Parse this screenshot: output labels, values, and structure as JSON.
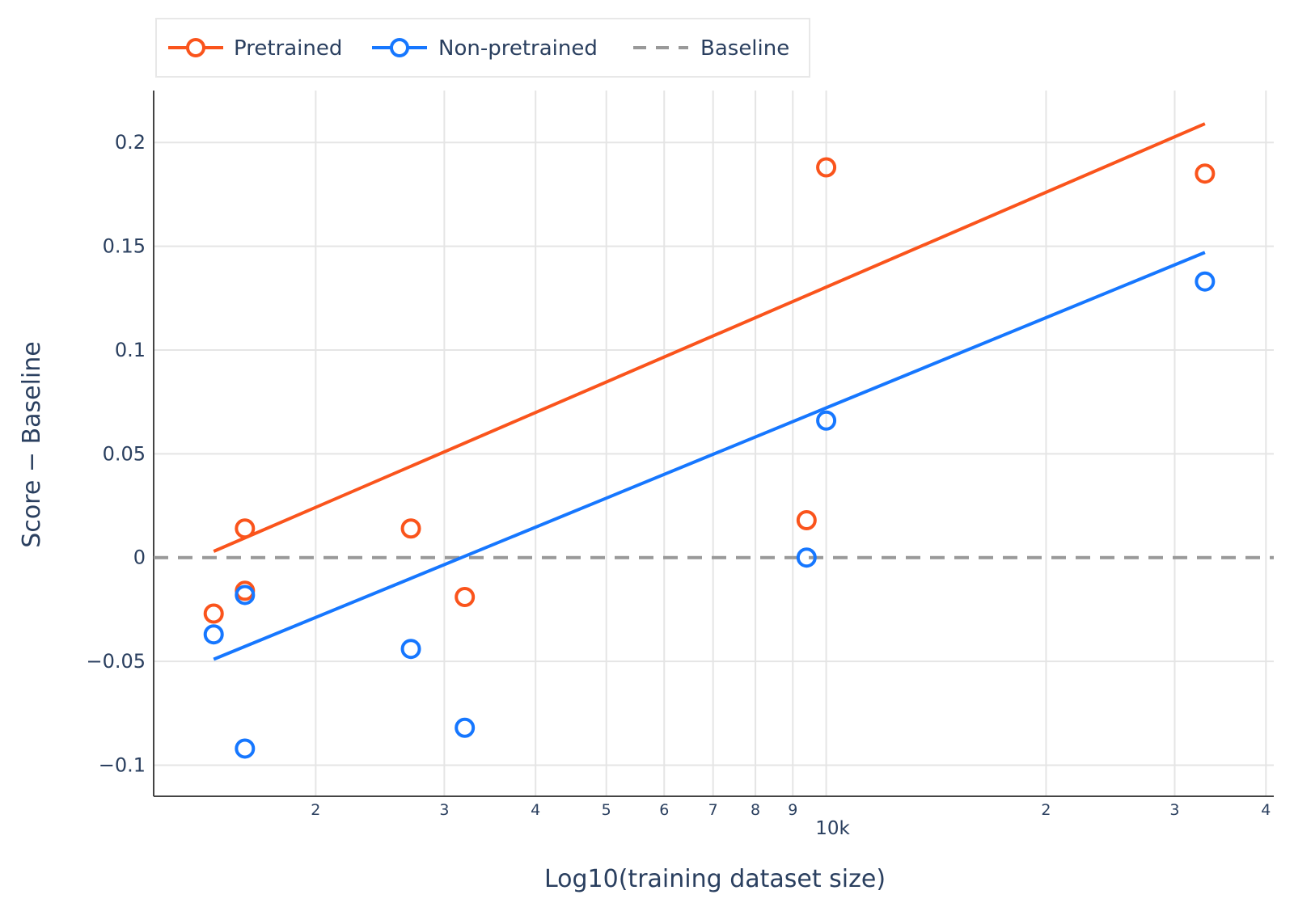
{
  "chart_data": {
    "type": "scatter",
    "title": "",
    "xlabel": "Log10(training dataset size)",
    "ylabel": "Score − Baseline",
    "x_scale": "log",
    "xlim": [
      1200,
      41000
    ],
    "ylim": [
      -0.115,
      0.225
    ],
    "y_ticks": [
      {
        "value": -0.1,
        "label": "−0.1"
      },
      {
        "value": -0.05,
        "label": "−0.05"
      },
      {
        "value": 0,
        "label": "0"
      },
      {
        "value": 0.05,
        "label": "0.05"
      },
      {
        "value": 0.1,
        "label": "0.1"
      },
      {
        "value": 0.15,
        "label": "0.15"
      },
      {
        "value": 0.2,
        "label": "0.2"
      }
    ],
    "x_ticks": [
      {
        "value": 2000,
        "label": "2"
      },
      {
        "value": 3000,
        "label": "3"
      },
      {
        "value": 4000,
        "label": "4"
      },
      {
        "value": 5000,
        "label": "5"
      },
      {
        "value": 6000,
        "label": "6"
      },
      {
        "value": 7000,
        "label": "7"
      },
      {
        "value": 8000,
        "label": "8"
      },
      {
        "value": 9000,
        "label": "9"
      },
      {
        "value": 10000,
        "label": "10k",
        "major": true
      },
      {
        "value": 20000,
        "label": "2"
      },
      {
        "value": 30000,
        "label": "3"
      },
      {
        "value": 40000,
        "label": "4"
      }
    ],
    "grid": true,
    "legend_position": "top-left",
    "series": [
      {
        "name": "Pretrained",
        "color": "#fa541c",
        "points": [
          {
            "x": 1450,
            "y": -0.027
          },
          {
            "x": 1600,
            "y": 0.014
          },
          {
            "x": 1600,
            "y": -0.016
          },
          {
            "x": 2700,
            "y": 0.014
          },
          {
            "x": 3200,
            "y": -0.019
          },
          {
            "x": 9400,
            "y": 0.018
          },
          {
            "x": 10000,
            "y": 0.188
          },
          {
            "x": 33000,
            "y": 0.185
          }
        ],
        "fit": {
          "x": [
            1450,
            33000
          ],
          "y": [
            0.003,
            0.209
          ]
        }
      },
      {
        "name": "Non-pretrained",
        "color": "#1677ff",
        "points": [
          {
            "x": 1450,
            "y": -0.037
          },
          {
            "x": 1600,
            "y": -0.018
          },
          {
            "x": 1600,
            "y": -0.092
          },
          {
            "x": 2700,
            "y": -0.044
          },
          {
            "x": 3200,
            "y": -0.082
          },
          {
            "x": 9400,
            "y": 0.0
          },
          {
            "x": 10000,
            "y": 0.066
          },
          {
            "x": 33000,
            "y": 0.133
          }
        ],
        "fit": {
          "x": [
            1450,
            33000
          ],
          "y": [
            -0.049,
            0.147
          ]
        }
      }
    ],
    "baseline": {
      "name": "Baseline",
      "y": 0,
      "color": "#999999",
      "dash": true
    }
  }
}
